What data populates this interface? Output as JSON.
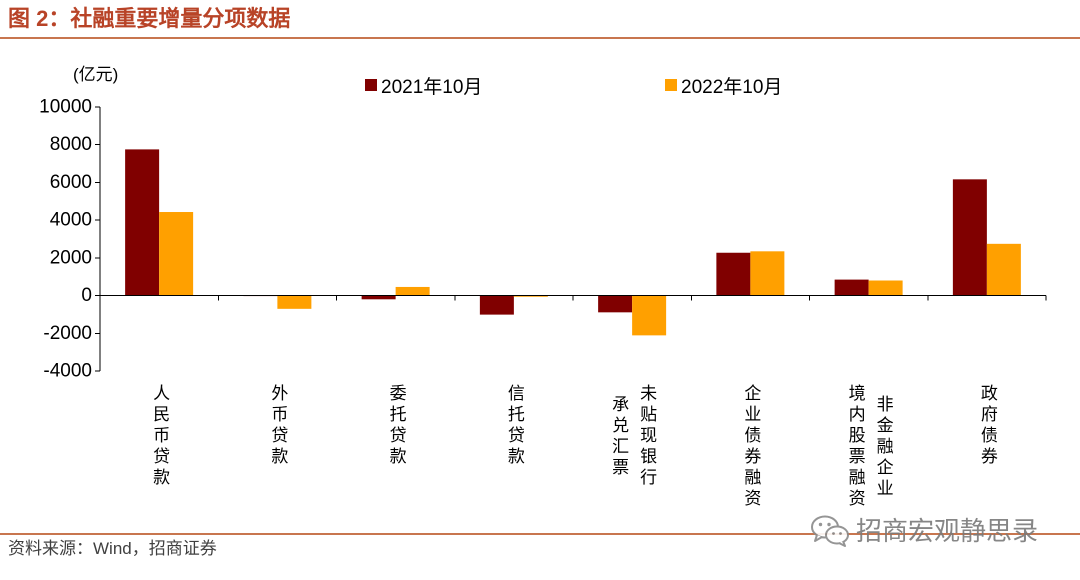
{
  "colors": {
    "title": "#b84327",
    "rule": "#c8764f"
  },
  "icons": {
    "watermark": "wechat-icon"
  },
  "figure": {
    "source": "资料来源：Wind，招商证券",
    "watermark": "招商宏观静思录"
  },
  "chart_data": {
    "type": "bar",
    "title": "图 2：社融重要增量分项数据",
    "ylabel": "(亿元)",
    "categories": [
      "人民币贷款",
      "外币贷款",
      "委托贷款",
      "信托贷款",
      "未贴现银行\n承兑汇票",
      "企业债券融资",
      "非金融企业\n境内股票融资",
      "政府债券"
    ],
    "series": [
      {
        "name": "2021年10月",
        "color": "#800000",
        "values": [
          7752,
          -24,
          -198,
          -1010,
          -889,
          2271,
          847,
          6164
        ]
      },
      {
        "name": "2022年10月",
        "color": "#ffa000",
        "values": [
          4431,
          -703,
          457,
          -62,
          -2110,
          2347,
          799,
          2744
        ]
      }
    ],
    "ylim": [
      -4000,
      10000
    ],
    "yticks": [
      -4000,
      -2000,
      0,
      2000,
      4000,
      6000,
      8000,
      10000
    ],
    "grid": false,
    "legend": "top-center"
  }
}
